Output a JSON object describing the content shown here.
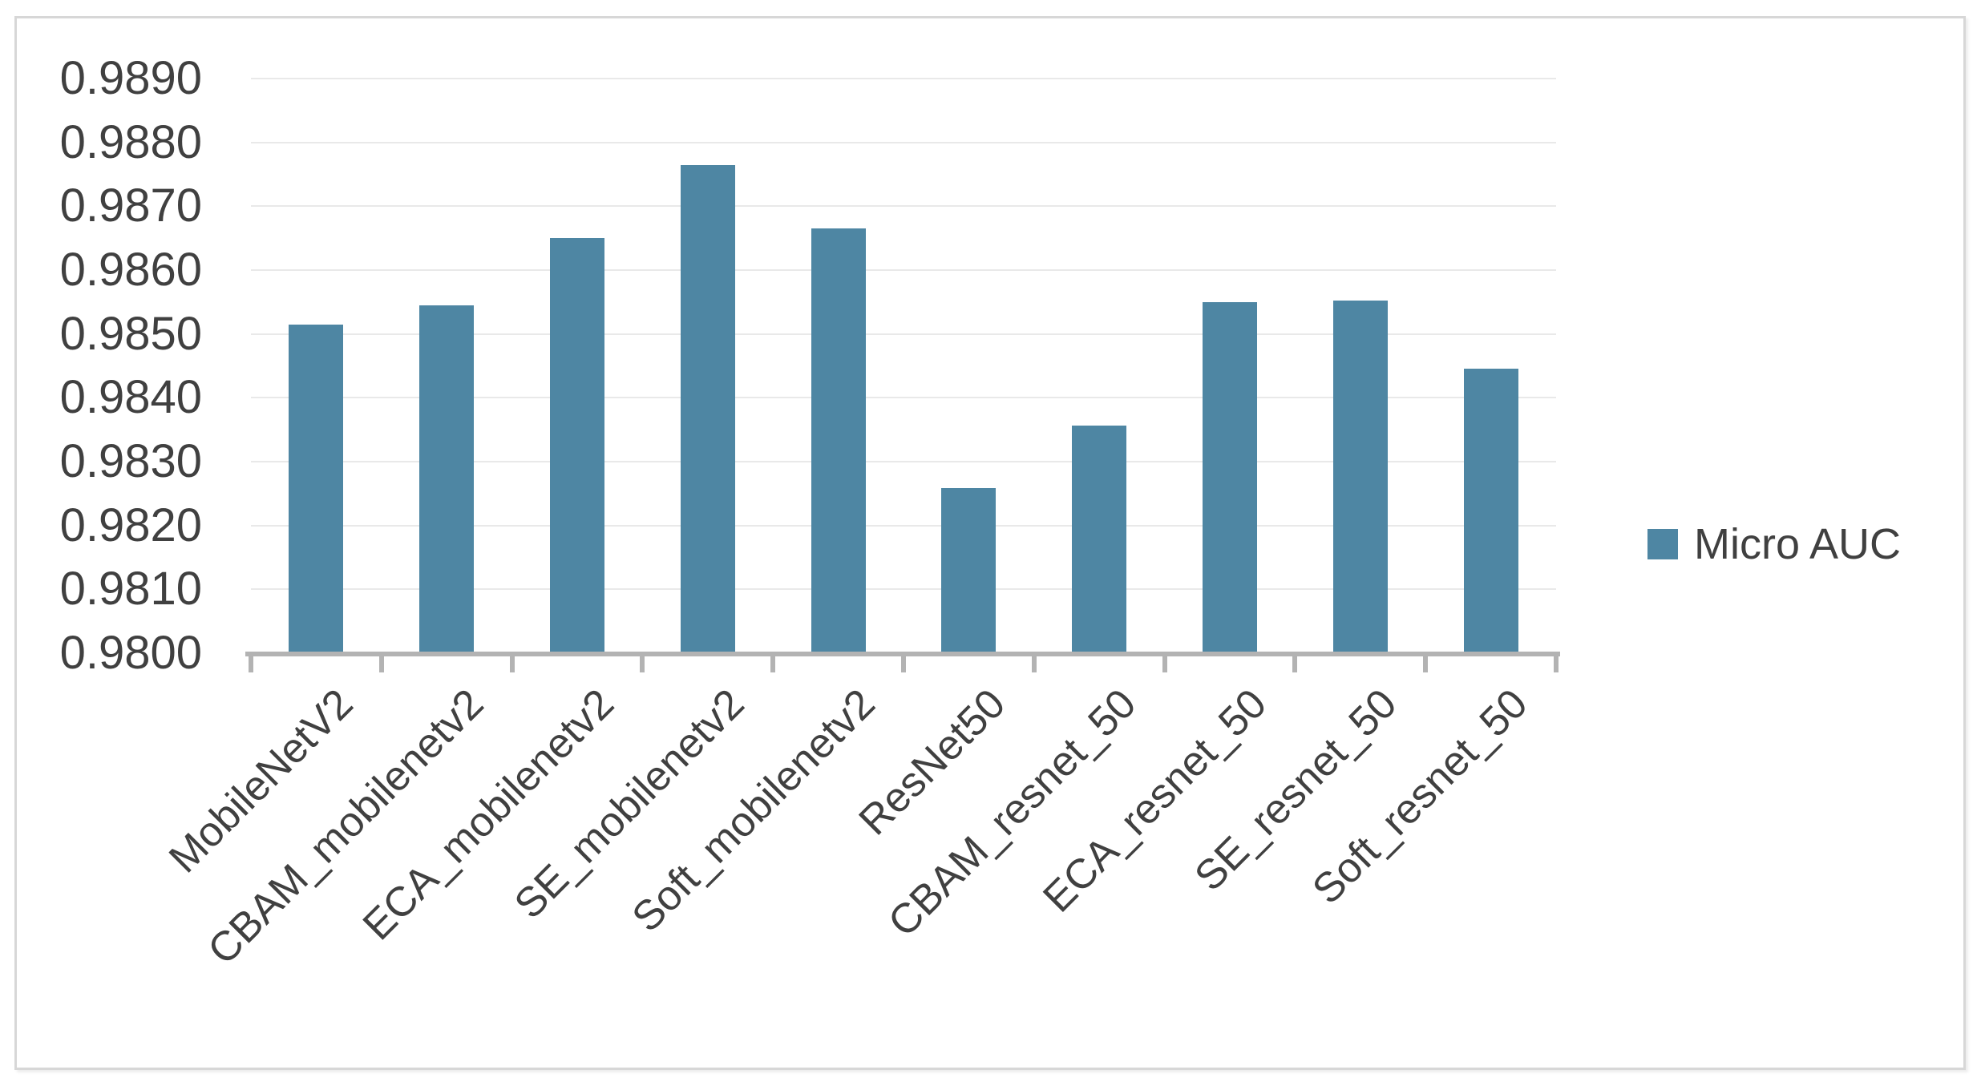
{
  "chart_data": {
    "type": "bar",
    "title": "",
    "categories": [
      "MobileNetV2",
      "CBAM_mobilenetv2",
      "ECA_mobilenetv2",
      "SE_mobilenetv2",
      "Soft_mobilenetv2",
      "ResNet50",
      "CBAM_resnet_50",
      "ECA_resnet_50",
      "SE_resnet_50",
      "Soft_resnet_50"
    ],
    "series": [
      {
        "name": "Micro AUC",
        "values": [
          0.98515,
          0.98545,
          0.9865,
          0.98765,
          0.98665,
          0.98258,
          0.98356,
          0.9855,
          0.98552,
          0.98445
        ]
      }
    ],
    "ylim": [
      0.98,
      0.989
    ],
    "ytick_step": 0.001,
    "ytick_labels": [
      "0.9890",
      "0.9880",
      "0.9870",
      "0.9860",
      "0.9850",
      "0.9840",
      "0.9830",
      "0.9820",
      "0.9810",
      "0.9800"
    ],
    "xlabel": "",
    "ylabel": "",
    "grid": true,
    "legend_position": "right",
    "bar_color": "#4E86A3",
    "axis_color": "#b3b3b3",
    "gridline_color": "#e9e9e9",
    "label_color": "#404040"
  },
  "legend": {
    "label": "Micro AUC"
  }
}
